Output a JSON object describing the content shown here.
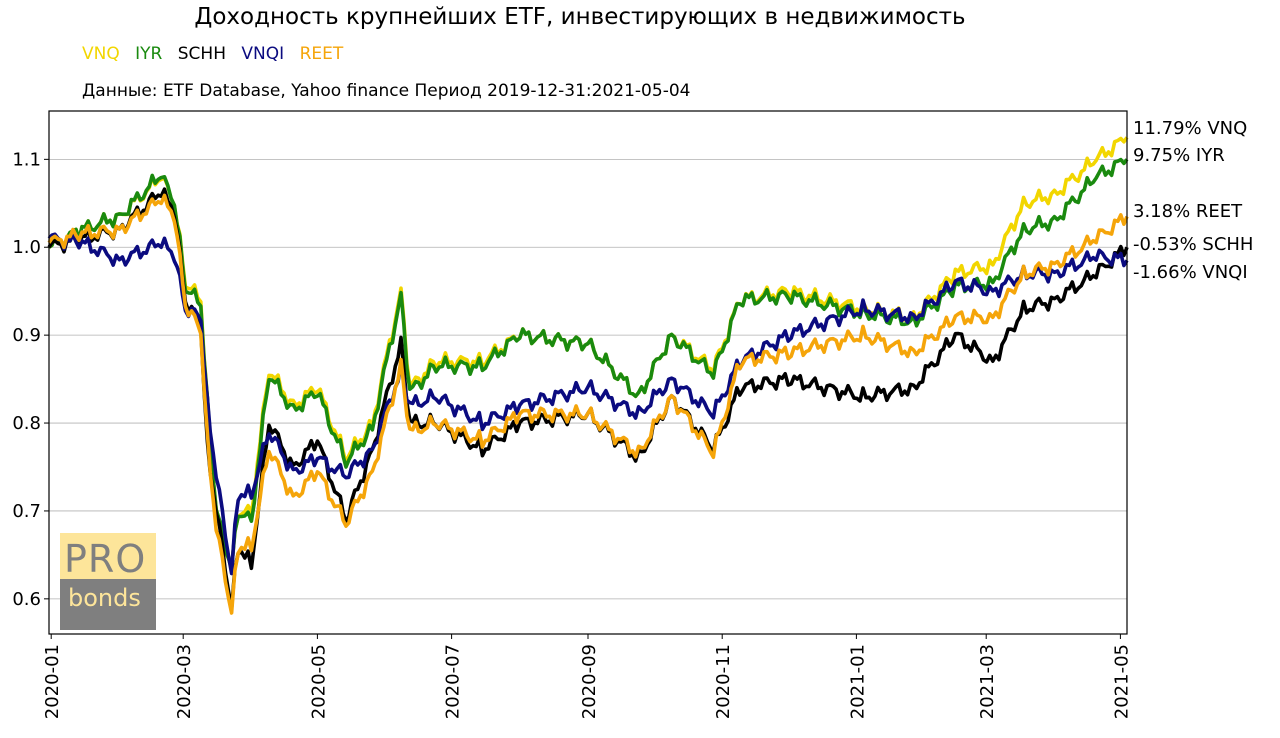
{
  "chart_data": {
    "type": "line",
    "title": "Доходность крупнейших ETF, инвестирующих в недвижимость",
    "subtitle": "Данные: ETF Database, Yahoo finance Период 2019-12-31:2021-05-04",
    "legend_position": "top-left",
    "grid": "horizontal",
    "xlim": [
      "2019-12-31",
      "2021-05-04"
    ],
    "ylim": [
      0.56,
      1.155
    ],
    "x_ticks": [
      "2020-01",
      "2020-03",
      "2020-05",
      "2020-07",
      "2020-09",
      "2020-11",
      "2021-01",
      "2021-03",
      "2021-05"
    ],
    "y_ticks": [
      0.6,
      0.7,
      0.8,
      0.9,
      1.0,
      1.1
    ],
    "y_tick_labels": [
      "0.6",
      "0.7",
      "0.8",
      "0.9",
      "1.0",
      "1.1"
    ],
    "end_labels": [
      {
        "text": "11.79% VNQ",
        "value": 1.1179
      },
      {
        "text": "9.75% IYR",
        "value": 1.0975
      },
      {
        "text": "3.18% REET",
        "value": 1.0318
      },
      {
        "text": "-0.53% SCHH",
        "value": 0.9947
      },
      {
        "text": "-1.66% VNQI",
        "value": 0.9834
      }
    ],
    "series": [
      {
        "name": "VNQ",
        "color": "#f2d600",
        "points": [
          [
            "2019-12-31",
            1.0
          ],
          [
            "2020-01-15",
            1.02
          ],
          [
            "2020-02-01",
            1.035
          ],
          [
            "2020-02-20",
            1.08
          ],
          [
            "2020-02-26",
            1.05
          ],
          [
            "2020-03-02",
            0.96
          ],
          [
            "2020-03-09",
            0.94
          ],
          [
            "2020-03-12",
            0.82
          ],
          [
            "2020-03-16",
            0.7
          ],
          [
            "2020-03-23",
            0.635
          ],
          [
            "2020-03-26",
            0.7
          ],
          [
            "2020-04-01",
            0.7
          ],
          [
            "2020-04-09",
            0.86
          ],
          [
            "2020-04-20",
            0.82
          ],
          [
            "2020-05-01",
            0.84
          ],
          [
            "2020-05-14",
            0.76
          ],
          [
            "2020-05-26",
            0.8
          ],
          [
            "2020-06-08",
            0.95
          ],
          [
            "2020-06-12",
            0.84
          ],
          [
            "2020-06-24",
            0.87
          ],
          [
            "2020-07-15",
            0.87
          ],
          [
            "2020-08-01",
            0.9
          ],
          [
            "2020-09-01",
            0.89
          ],
          [
            "2020-09-24",
            0.83
          ],
          [
            "2020-10-09",
            0.9
          ],
          [
            "2020-10-28",
            0.86
          ],
          [
            "2020-11-09",
            0.94
          ],
          [
            "2020-12-01",
            0.95
          ],
          [
            "2021-01-04",
            0.93
          ],
          [
            "2021-01-27",
            0.92
          ],
          [
            "2021-02-15",
            0.97
          ],
          [
            "2021-03-04",
            0.98
          ],
          [
            "2021-03-18",
            1.05
          ],
          [
            "2021-04-01",
            1.06
          ],
          [
            "2021-04-20",
            1.1
          ],
          [
            "2021-05-04",
            1.125
          ]
        ]
      },
      {
        "name": "IYR",
        "color": "#1a8a0f",
        "points": [
          [
            "2019-12-31",
            1.0
          ],
          [
            "2020-01-15",
            1.02
          ],
          [
            "2020-02-01",
            1.035
          ],
          [
            "2020-02-20",
            1.082
          ],
          [
            "2020-02-26",
            1.05
          ],
          [
            "2020-03-02",
            0.955
          ],
          [
            "2020-03-09",
            0.935
          ],
          [
            "2020-03-12",
            0.82
          ],
          [
            "2020-03-16",
            0.7
          ],
          [
            "2020-03-23",
            0.635
          ],
          [
            "2020-03-26",
            0.7
          ],
          [
            "2020-04-01",
            0.69
          ],
          [
            "2020-04-09",
            0.855
          ],
          [
            "2020-04-20",
            0.815
          ],
          [
            "2020-05-01",
            0.835
          ],
          [
            "2020-05-14",
            0.755
          ],
          [
            "2020-05-26",
            0.795
          ],
          [
            "2020-06-08",
            0.945
          ],
          [
            "2020-06-12",
            0.835
          ],
          [
            "2020-06-24",
            0.865
          ],
          [
            "2020-07-15",
            0.865
          ],
          [
            "2020-08-01",
            0.9
          ],
          [
            "2020-09-01",
            0.89
          ],
          [
            "2020-09-24",
            0.83
          ],
          [
            "2020-10-09",
            0.9
          ],
          [
            "2020-10-28",
            0.855
          ],
          [
            "2020-11-09",
            0.94
          ],
          [
            "2020-12-01",
            0.945
          ],
          [
            "2021-01-04",
            0.925
          ],
          [
            "2021-01-27",
            0.915
          ],
          [
            "2021-02-15",
            0.955
          ],
          [
            "2021-03-04",
            0.96
          ],
          [
            "2021-03-18",
            1.02
          ],
          [
            "2021-04-01",
            1.03
          ],
          [
            "2021-04-20",
            1.08
          ],
          [
            "2021-05-04",
            1.1
          ]
        ]
      },
      {
        "name": "SCHH",
        "color": "#000000",
        "points": [
          [
            "2019-12-31",
            1.0
          ],
          [
            "2020-01-15",
            1.01
          ],
          [
            "2020-02-01",
            1.02
          ],
          [
            "2020-02-20",
            1.063
          ],
          [
            "2020-02-26",
            1.04
          ],
          [
            "2020-03-02",
            0.94
          ],
          [
            "2020-03-09",
            0.91
          ],
          [
            "2020-03-12",
            0.77
          ],
          [
            "2020-03-16",
            0.7
          ],
          [
            "2020-03-23",
            0.59
          ],
          [
            "2020-03-26",
            0.66
          ],
          [
            "2020-04-01",
            0.64
          ],
          [
            "2020-04-09",
            0.8
          ],
          [
            "2020-04-20",
            0.75
          ],
          [
            "2020-05-01",
            0.78
          ],
          [
            "2020-05-14",
            0.69
          ],
          [
            "2020-05-26",
            0.77
          ],
          [
            "2020-06-08",
            0.89
          ],
          [
            "2020-06-12",
            0.8
          ],
          [
            "2020-06-24",
            0.8
          ],
          [
            "2020-07-15",
            0.77
          ],
          [
            "2020-08-01",
            0.8
          ],
          [
            "2020-09-01",
            0.81
          ],
          [
            "2020-09-24",
            0.76
          ],
          [
            "2020-10-09",
            0.83
          ],
          [
            "2020-10-28",
            0.77
          ],
          [
            "2020-11-09",
            0.84
          ],
          [
            "2020-12-01",
            0.85
          ],
          [
            "2021-01-04",
            0.83
          ],
          [
            "2021-01-27",
            0.84
          ],
          [
            "2021-02-15",
            0.9
          ],
          [
            "2021-03-04",
            0.87
          ],
          [
            "2021-03-18",
            0.93
          ],
          [
            "2021-04-01",
            0.94
          ],
          [
            "2021-04-20",
            0.97
          ],
          [
            "2021-05-04",
            1.0
          ]
        ]
      },
      {
        "name": "VNQI",
        "color": "#0b0b80",
        "points": [
          [
            "2019-12-31",
            1.01
          ],
          [
            "2020-01-15",
            1.005
          ],
          [
            "2020-02-01",
            0.985
          ],
          [
            "2020-02-20",
            1.005
          ],
          [
            "2020-02-26",
            0.99
          ],
          [
            "2020-03-02",
            0.93
          ],
          [
            "2020-03-09",
            0.92
          ],
          [
            "2020-03-12",
            0.82
          ],
          [
            "2020-03-16",
            0.74
          ],
          [
            "2020-03-23",
            0.63
          ],
          [
            "2020-03-26",
            0.72
          ],
          [
            "2020-04-01",
            0.72
          ],
          [
            "2020-04-09",
            0.79
          ],
          [
            "2020-04-20",
            0.745
          ],
          [
            "2020-05-01",
            0.76
          ],
          [
            "2020-05-14",
            0.74
          ],
          [
            "2020-05-26",
            0.77
          ],
          [
            "2020-06-08",
            0.86
          ],
          [
            "2020-06-12",
            0.82
          ],
          [
            "2020-06-24",
            0.83
          ],
          [
            "2020-07-15",
            0.8
          ],
          [
            "2020-08-01",
            0.82
          ],
          [
            "2020-09-01",
            0.84
          ],
          [
            "2020-09-24",
            0.81
          ],
          [
            "2020-10-09",
            0.85
          ],
          [
            "2020-10-28",
            0.81
          ],
          [
            "2020-11-09",
            0.87
          ],
          [
            "2020-12-01",
            0.9
          ],
          [
            "2021-01-04",
            0.93
          ],
          [
            "2021-01-27",
            0.92
          ],
          [
            "2021-02-15",
            0.96
          ],
          [
            "2021-03-04",
            0.95
          ],
          [
            "2021-03-18",
            0.97
          ],
          [
            "2021-04-01",
            0.97
          ],
          [
            "2021-04-20",
            0.99
          ],
          [
            "2021-05-04",
            0.985
          ]
        ]
      },
      {
        "name": "REET",
        "color": "#f5a50a",
        "points": [
          [
            "2019-12-31",
            1.005
          ],
          [
            "2020-01-15",
            1.015
          ],
          [
            "2020-02-01",
            1.02
          ],
          [
            "2020-02-20",
            1.055
          ],
          [
            "2020-02-26",
            1.035
          ],
          [
            "2020-03-02",
            0.935
          ],
          [
            "2020-03-09",
            0.905
          ],
          [
            "2020-03-12",
            0.78
          ],
          [
            "2020-03-16",
            0.68
          ],
          [
            "2020-03-23",
            0.585
          ],
          [
            "2020-03-26",
            0.66
          ],
          [
            "2020-04-01",
            0.66
          ],
          [
            "2020-04-09",
            0.77
          ],
          [
            "2020-04-20",
            0.715
          ],
          [
            "2020-05-01",
            0.745
          ],
          [
            "2020-05-14",
            0.685
          ],
          [
            "2020-05-26",
            0.745
          ],
          [
            "2020-06-08",
            0.865
          ],
          [
            "2020-06-12",
            0.79
          ],
          [
            "2020-06-24",
            0.8
          ],
          [
            "2020-07-15",
            0.78
          ],
          [
            "2020-08-01",
            0.81
          ],
          [
            "2020-09-01",
            0.81
          ],
          [
            "2020-09-24",
            0.765
          ],
          [
            "2020-10-09",
            0.83
          ],
          [
            "2020-10-28",
            0.765
          ],
          [
            "2020-11-09",
            0.87
          ],
          [
            "2020-12-01",
            0.88
          ],
          [
            "2021-01-04",
            0.9
          ],
          [
            "2021-01-27",
            0.88
          ],
          [
            "2021-02-15",
            0.92
          ],
          [
            "2021-03-04",
            0.92
          ],
          [
            "2021-03-18",
            0.97
          ],
          [
            "2021-04-01",
            0.98
          ],
          [
            "2021-04-20",
            1.01
          ],
          [
            "2021-05-04",
            1.035
          ]
        ]
      }
    ]
  },
  "logo": {
    "top_text": "PRO",
    "bottom_text": "bonds",
    "top_color": "#fde59a",
    "bottom_color": "#7f7f7f"
  }
}
